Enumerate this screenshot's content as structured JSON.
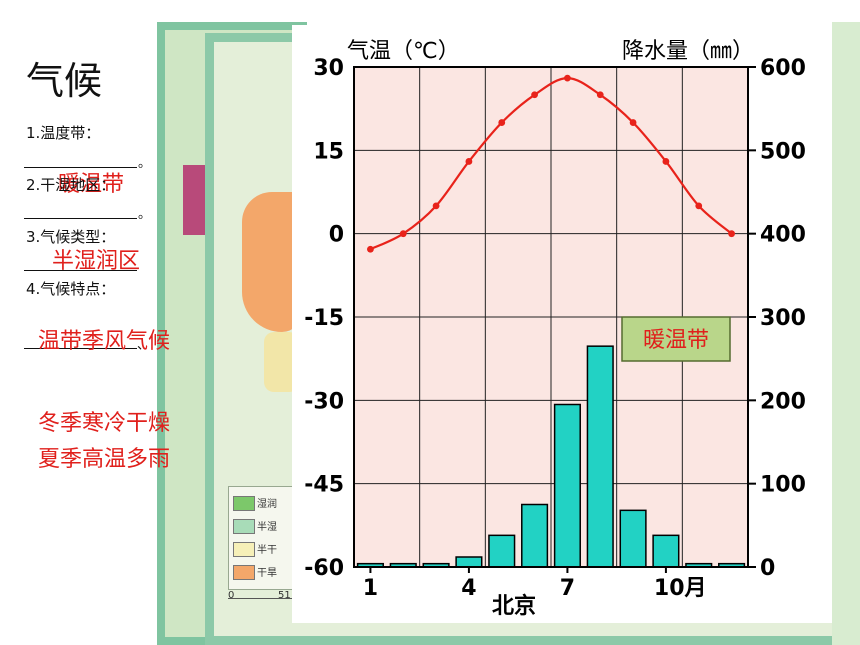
{
  "notes": {
    "title": "气候",
    "q1": "1.温度带：",
    "q2": "2.干湿地区：",
    "q3": "3.气候类型：",
    "q4": "4.气候特点：",
    "period": "。",
    "comma": "、",
    "a1": "暖温带",
    "a2": "半湿润区",
    "a3": "温带季风气候",
    "a4_line1": "冬季寒冷干燥",
    "a4_line2": "夏季高温多雨"
  },
  "map_legend": [
    "湿润",
    "半湿",
    "半干",
    "干旱"
  ],
  "map_scale": [
    "0",
    "51"
  ],
  "chart_data": {
    "type": "bar+line",
    "left_axis_label": "气温（℃）",
    "right_axis_label": "降水量（㎜）",
    "left_ylim": [
      -60,
      30
    ],
    "left_ticks": [
      "30",
      "15",
      "0",
      "-15",
      "-30",
      "-45",
      "-60"
    ],
    "right_ylim": [
      0,
      600
    ],
    "right_ticks": [
      "600",
      "500",
      "400",
      "300",
      "200",
      "100",
      "0"
    ],
    "x": [
      1,
      2,
      3,
      4,
      5,
      6,
      7,
      8,
      9,
      10,
      11,
      12
    ],
    "x_tick_labels": [
      {
        "month": 1,
        "label": "1"
      },
      {
        "month": 4,
        "label": "4"
      },
      {
        "month": 7,
        "label": "7"
      },
      {
        "month": 10,
        "label": "10月"
      }
    ],
    "station": "北京",
    "annotation": "暖温带",
    "temperature": [
      -2.8,
      0,
      5,
      13,
      20,
      25,
      28,
      25,
      20,
      13,
      5,
      0
    ],
    "precipitation": [
      4,
      4,
      4,
      12,
      38,
      75,
      195,
      265,
      68,
      38,
      4,
      4
    ],
    "grid": true,
    "colors": {
      "line": "#e8231b",
      "bar": "#22d2c4",
      "plot_bg": "#fbe6e2"
    }
  }
}
